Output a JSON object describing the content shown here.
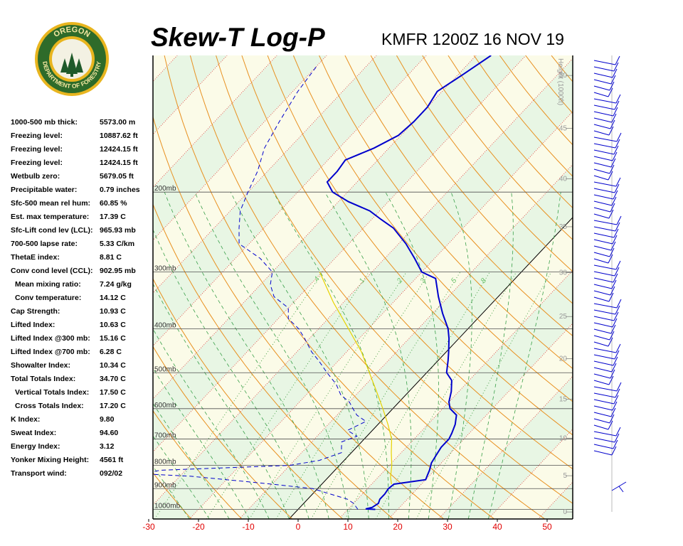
{
  "header": {
    "title": "Skew-T Log-P",
    "subtitle": "KMFR 1200Z 16 NOV 19"
  },
  "logo": {
    "top_text": "OREGON",
    "bottom_text": "DEPARTMENT OF FORESTRY",
    "colors": {
      "ring": "#2e6b2a",
      "gold": "#e8b51f",
      "tree": "#1f5a2a"
    }
  },
  "stats": [
    {
      "label": "1000-500 mb thick:",
      "value": "5573.00 m",
      "indent": false
    },
    {
      "label": "Freezing level:",
      "value": "10887.62 ft",
      "indent": false
    },
    {
      "label": "Freezing level:",
      "value": "12424.15 ft",
      "indent": false
    },
    {
      "label": "Freezing level:",
      "value": "12424.15 ft",
      "indent": false
    },
    {
      "label": "Wetbulb zero:",
      "value": "5679.05 ft",
      "indent": false
    },
    {
      "label": "Precipitable water:",
      "value": "0.79 inches",
      "indent": false
    },
    {
      "label": "Sfc-500 mean rel hum:",
      "value": "60.85 %",
      "indent": false
    },
    {
      "label": "Est. max temperature:",
      "value": "17.39 C",
      "indent": false
    },
    {
      "label": "Sfc-Lift cond lev (LCL):",
      "value": "965.93 mb",
      "indent": false
    },
    {
      "label": "700-500 lapse rate:",
      "value": "5.33 C/km",
      "indent": false
    },
    {
      "label": "ThetaE index:",
      "value": "8.81 C",
      "indent": false
    },
    {
      "label": "Conv cond level (CCL):",
      "value": "902.95 mb",
      "indent": false
    },
    {
      "label": "Mean mixing ratio:",
      "value": "7.24 g/kg",
      "indent": true
    },
    {
      "label": "Conv temperature:",
      "value": "14.12 C",
      "indent": true
    },
    {
      "label": "Cap Strength:",
      "value": "10.93 C",
      "indent": false
    },
    {
      "label": "Lifted Index:",
      "value": "10.63 C",
      "indent": false
    },
    {
      "label": "Lifted Index @300 mb:",
      "value": "15.16 C",
      "indent": false
    },
    {
      "label": "Lifted Index @700 mb:",
      "value": "6.28 C",
      "indent": false
    },
    {
      "label": "Showalter Index:",
      "value": "10.34 C",
      "indent": false
    },
    {
      "label": "Total Totals Index:",
      "value": "34.70 C",
      "indent": false
    },
    {
      "label": "Vertical Totals Index:",
      "value": "17.50 C",
      "indent": true
    },
    {
      "label": "Cross Totals Index:",
      "value": "17.20 C",
      "indent": true
    },
    {
      "label": "K Index:",
      "value": "9.80",
      "indent": false
    },
    {
      "label": "Sweat Index:",
      "value": "94.60",
      "indent": false
    },
    {
      "label": "Energy Index:",
      "value": "3.12",
      "indent": false
    },
    {
      "label": "Yonker Mixing Height:",
      "value": "4561 ft",
      "indent": false
    },
    {
      "label": "Transport wind:",
      "value": "092/02",
      "indent": false
    }
  ],
  "chart_data": {
    "type": "line",
    "title": "Skew-T Log-P",
    "subtitle": "KMFR 1200Z 16 NOV 19",
    "x_axis": {
      "ticks": [
        -30,
        -20,
        -10,
        0,
        10,
        20,
        30,
        40,
        50
      ],
      "tick_labels": [
        "-30",
        "-20",
        "-10",
        "0",
        "10",
        "20",
        "30",
        "40",
        "50"
      ],
      "color": "#e00000"
    },
    "pressure_levels": [
      {
        "p": 200,
        "label": "200mb"
      },
      {
        "p": 300,
        "label": "300mb"
      },
      {
        "p": 400,
        "label": "400mb"
      },
      {
        "p": 500,
        "label": "500mb"
      },
      {
        "p": 600,
        "label": "600mb"
      },
      {
        "p": 700,
        "label": "700mb"
      },
      {
        "p": 800,
        "label": "800mb"
      },
      {
        "p": 900,
        "label": "900mb"
      },
      {
        "p": 1000,
        "label": "1000mb"
      }
    ],
    "height_axis": {
      "title": "Height (1000ft)",
      "ticks": [
        0,
        5,
        10,
        15,
        20,
        25,
        30,
        35,
        40,
        45,
        50
      ]
    },
    "mixing_ratio_labels": [
      ".4",
      "1",
      "2",
      "3",
      "5",
      "8"
    ],
    "series": [
      {
        "name": "Temperature",
        "color": "#0000cc",
        "points": [
          [
            15.5,
            1000
          ],
          [
            13.5,
            998
          ],
          [
            14.5,
            990
          ],
          [
            15,
            970
          ],
          [
            14.5,
            950
          ],
          [
            14.5,
            925
          ],
          [
            14.2,
            900
          ],
          [
            14.5,
            880
          ],
          [
            20.0,
            860
          ],
          [
            19.5,
            840
          ],
          [
            19.0,
            820
          ],
          [
            18.0,
            790
          ],
          [
            17.5,
            760
          ],
          [
            17.0,
            730
          ],
          [
            17.0,
            700
          ],
          [
            16.5,
            680
          ],
          [
            15.5,
            650
          ],
          [
            14.0,
            620
          ],
          [
            11.5,
            600
          ],
          [
            10.0,
            580
          ],
          [
            8.5,
            550
          ],
          [
            6.5,
            520
          ],
          [
            4.0,
            500
          ],
          [
            2.0,
            470
          ],
          [
            0.5,
            450
          ],
          [
            -2.0,
            420
          ],
          [
            -4.0,
            400
          ],
          [
            -8.0,
            370
          ],
          [
            -12.0,
            340
          ],
          [
            -16.0,
            310
          ],
          [
            -20.0,
            300
          ],
          [
            -24.0,
            280
          ],
          [
            -28.5,
            260
          ],
          [
            -34.0,
            240
          ],
          [
            -38.0,
            230
          ],
          [
            -42.0,
            220
          ],
          [
            -48.0,
            210
          ],
          [
            -53.0,
            200
          ],
          [
            -56.0,
            190
          ],
          [
            -56.0,
            180
          ],
          [
            -56.5,
            170
          ],
          [
            -53.0,
            160
          ],
          [
            -50.5,
            150
          ],
          [
            -50.0,
            140
          ],
          [
            -50.0,
            130
          ],
          [
            -51.0,
            120
          ],
          [
            -49.0,
            110
          ],
          [
            -47.0,
            100
          ]
        ]
      },
      {
        "name": "Dewpoint",
        "color": "#0000cc",
        "dashed": true,
        "points": [
          [
            12.0,
            1000
          ],
          [
            10.0,
            970
          ],
          [
            8.0,
            950
          ],
          [
            -1.0,
            900
          ],
          [
            -10.0,
            880
          ],
          [
            -20.0,
            860
          ],
          [
            -28.0,
            845
          ],
          [
            -38.0,
            835
          ],
          [
            -35.0,
            820
          ],
          [
            -10.0,
            800
          ],
          [
            -5.0,
            780
          ],
          [
            -2.0,
            750
          ],
          [
            -3.0,
            730
          ],
          [
            -4.0,
            710
          ],
          [
            -2.0,
            690
          ],
          [
            -5.0,
            670
          ],
          [
            -3.0,
            640
          ],
          [
            -6.0,
            620
          ],
          [
            -8.0,
            600
          ],
          [
            -10.0,
            580
          ],
          [
            -13.0,
            560
          ],
          [
            -16.0,
            530
          ],
          [
            -20.0,
            500
          ],
          [
            -24.0,
            470
          ],
          [
            -27.0,
            450
          ],
          [
            -31.0,
            420
          ],
          [
            -34.0,
            400
          ],
          [
            -38.0,
            380
          ],
          [
            -40.0,
            360
          ],
          [
            -45.0,
            340
          ],
          [
            -48.0,
            320
          ],
          [
            -50.0,
            300
          ],
          [
            -55.0,
            280
          ],
          [
            -62.0,
            260
          ],
          [
            -65.0,
            240
          ],
          [
            -68.0,
            220
          ],
          [
            -70.0,
            200
          ],
          [
            -72.0,
            180
          ],
          [
            -75.0,
            160
          ],
          [
            -77.0,
            140
          ],
          [
            -79.0,
            120
          ],
          [
            -80.0,
            105
          ]
        ]
      },
      {
        "name": "Parcel",
        "color": "#e6d200",
        "points": [
          [
            14.0,
            880
          ],
          [
            12.5,
            850
          ],
          [
            10.5,
            800
          ],
          [
            8.0,
            750
          ],
          [
            5.5,
            700
          ],
          [
            2.0,
            650
          ],
          [
            -2.0,
            600
          ],
          [
            -6.5,
            550
          ],
          [
            -11.5,
            500
          ],
          [
            -17.0,
            450
          ],
          [
            -24.0,
            400
          ],
          [
            -32.0,
            350
          ],
          [
            -40.5,
            300
          ]
        ]
      }
    ],
    "legend": "none",
    "grid": true
  }
}
